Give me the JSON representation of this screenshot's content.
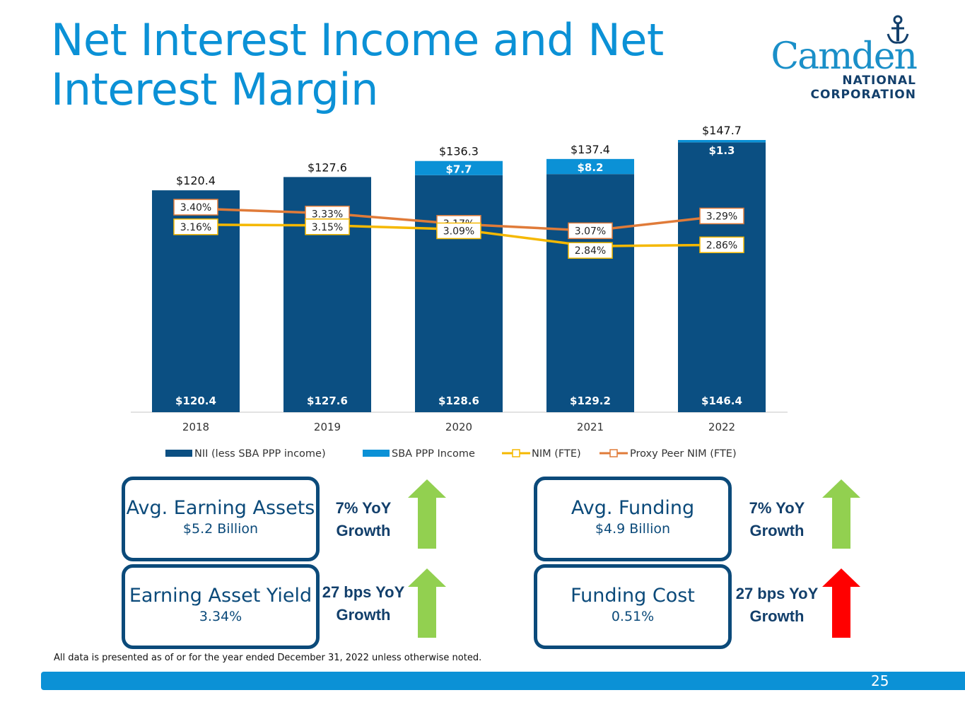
{
  "title": "Net Interest Income and Net Interest Margin",
  "logo": {
    "brand": "Camden",
    "line1": "NATIONAL",
    "line2": "CORPORATION"
  },
  "chart_data": {
    "type": "bar",
    "categories": [
      "2018",
      "2019",
      "2020",
      "2021",
      "2022"
    ],
    "series": [
      {
        "name": "NII (less SBA PPP income)",
        "kind": "bar",
        "color": "#0b4f82",
        "values": [
          120.4,
          127.6,
          128.6,
          129.2,
          146.4
        ],
        "labels": [
          "$120.4",
          "$127.6",
          "$128.6",
          "$129.2",
          "$146.4"
        ]
      },
      {
        "name": "SBA PPP Income",
        "kind": "bar",
        "color": "#0b91d6",
        "values": [
          0,
          0,
          7.7,
          8.2,
          1.3
        ],
        "labels": [
          "",
          "",
          "$7.7",
          "$8.2",
          "$1.3"
        ]
      },
      {
        "name": "NIM (FTE)",
        "kind": "line",
        "color": "#f5b800",
        "values": [
          3.16,
          3.15,
          3.09,
          2.84,
          2.86
        ],
        "labels": [
          "3.16%",
          "3.15%",
          "3.09%",
          "2.84%",
          "2.86%"
        ]
      },
      {
        "name": "Proxy Peer NIM (FTE)",
        "kind": "line",
        "color": "#e07b39",
        "values": [
          3.4,
          3.33,
          3.17,
          3.07,
          3.29
        ],
        "labels": [
          "3.40%",
          "3.33%",
          "3.17%",
          "3.07%",
          "3.29%"
        ]
      }
    ],
    "totals": [
      120.4,
      127.6,
      136.3,
      137.4,
      147.7
    ],
    "total_labels": [
      "$120.4",
      "$127.6",
      "$136.3",
      "$137.4",
      "$147.7"
    ],
    "ylim_bar": [
      0,
      150
    ],
    "ylim_line": [
      0,
      4.0
    ],
    "legend": "bottom"
  },
  "metrics": [
    {
      "title": "Avg. Earning Assets",
      "value": "$5.2 Billion",
      "growth1": "7% YoY",
      "growth2": "Growth",
      "arrow_color": "#92d050"
    },
    {
      "title": "Avg. Funding",
      "value": "$4.9 Billion",
      "growth1": "7% YoY",
      "growth2": "Growth",
      "arrow_color": "#92d050"
    },
    {
      "title": "Earning Asset Yield",
      "value": "3.34%",
      "growth1": "27 bps YoY",
      "growth2": "Growth",
      "arrow_color": "#92d050"
    },
    {
      "title": "Funding Cost",
      "value": "0.51%",
      "growth1": "27 bps YoY",
      "growth2": "Growth",
      "arrow_color": "#ff0000"
    }
  ],
  "footnote": "All data is presented as of or for the year ended December 31, 2022 unless otherwise noted.",
  "page_number": "25"
}
